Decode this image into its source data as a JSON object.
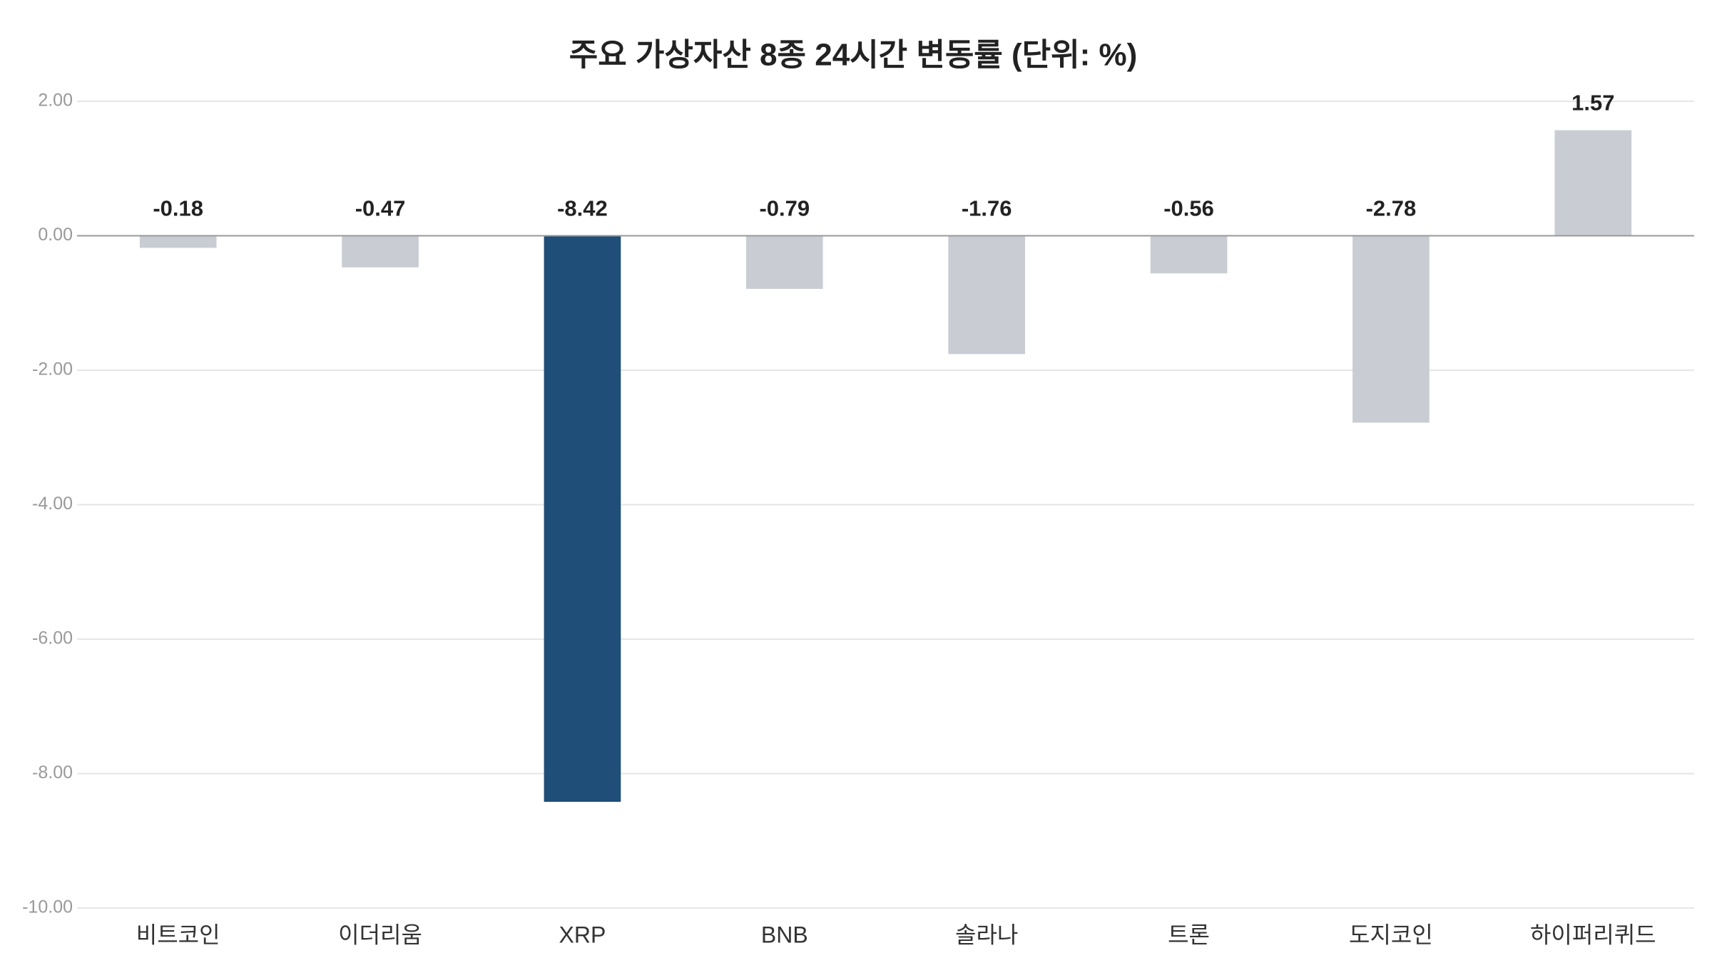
{
  "chart_data": {
    "type": "bar",
    "title": "주요 가상자산 8종 24시간 변동률 (단위: %)",
    "categories": [
      "비트코인",
      "이더리움",
      "XRP",
      "BNB",
      "솔라나",
      "트론",
      "도지코인",
      "하이퍼리퀴드"
    ],
    "values": [
      -0.18,
      -0.47,
      -8.42,
      -0.79,
      -1.76,
      -0.56,
      -2.78,
      1.57
    ],
    "colors": [
      "#c9cdd3",
      "#c9cdd3",
      "#1f4e79",
      "#c9cdd3",
      "#c9cdd3",
      "#c9cdd3",
      "#c9cdd3",
      "#c9cdd3"
    ],
    "ylim": [
      -10,
      2
    ],
    "yticks": [
      {
        "value": 2,
        "label": "2.00"
      },
      {
        "value": 0,
        "label": "0.00"
      },
      {
        "value": -2,
        "label": "-2.00"
      },
      {
        "value": -4,
        "label": "-4.00"
      },
      {
        "value": -6,
        "label": "-6.00"
      },
      {
        "value": -8,
        "label": "-8.00"
      },
      {
        "value": -10,
        "label": "-10.00"
      }
    ],
    "grid": true
  }
}
